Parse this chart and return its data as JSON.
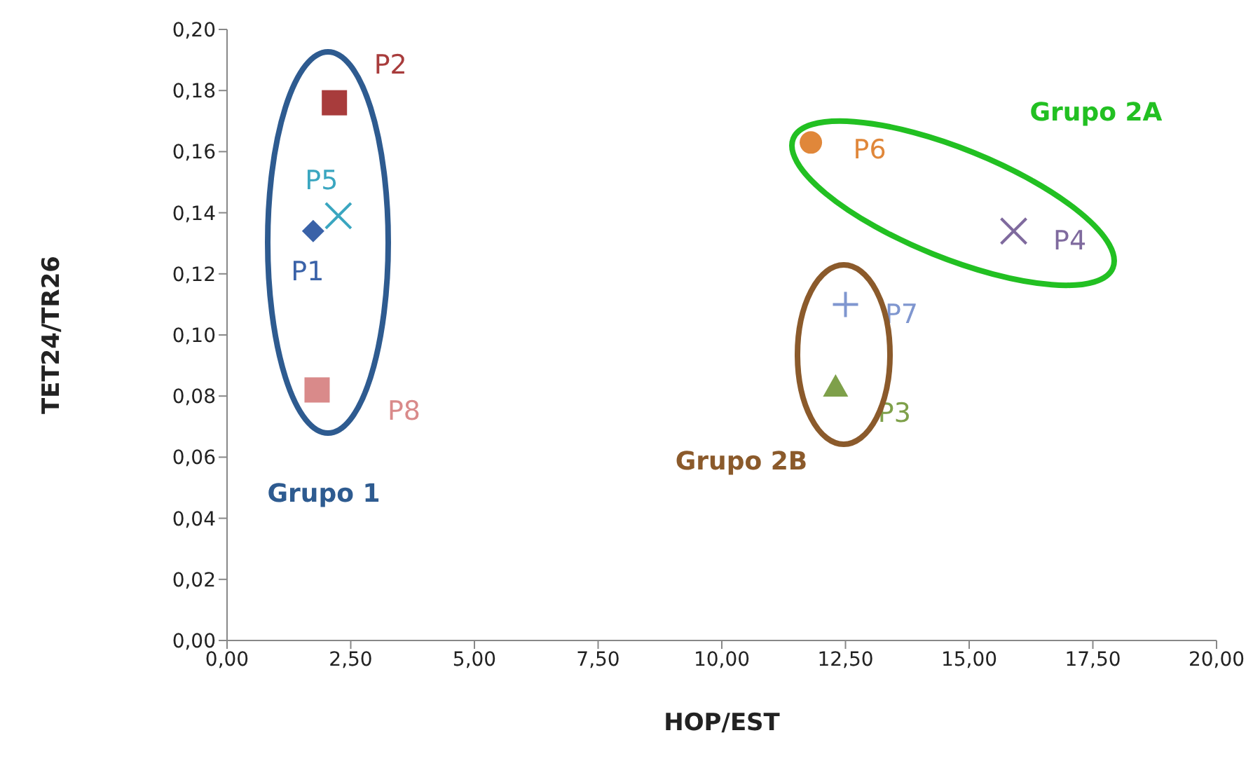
{
  "chart_data": {
    "type": "scatter",
    "xlabel": "HOP/EST",
    "ylabel": "TET24/TR26",
    "xlim": [
      0,
      20
    ],
    "ylim": [
      0,
      0.2
    ],
    "xticks": [
      {
        "value": 0,
        "label": "0,00"
      },
      {
        "value": 2.5,
        "label": "2,50"
      },
      {
        "value": 5,
        "label": "5,00"
      },
      {
        "value": 7.5,
        "label": "7,50"
      },
      {
        "value": 10,
        "label": "10,00"
      },
      {
        "value": 12.5,
        "label": "12,50"
      },
      {
        "value": 15,
        "label": "15,00"
      },
      {
        "value": 17.5,
        "label": "17,50"
      },
      {
        "value": 20,
        "label": "20,00"
      }
    ],
    "yticks": [
      {
        "value": 0,
        "label": "0,00"
      },
      {
        "value": 0.02,
        "label": "0,02"
      },
      {
        "value": 0.04,
        "label": "0,04"
      },
      {
        "value": 0.06,
        "label": "0,06"
      },
      {
        "value": 0.08,
        "label": "0,08"
      },
      {
        "value": 0.1,
        "label": "0,10"
      },
      {
        "value": 0.12,
        "label": "0,12"
      },
      {
        "value": 0.14,
        "label": "0,14"
      },
      {
        "value": 0.16,
        "label": "0,16"
      },
      {
        "value": 0.18,
        "label": "0,18"
      },
      {
        "value": 0.2,
        "label": "0,20"
      }
    ],
    "grid": false,
    "legend": false,
    "series": [
      {
        "name": "P1",
        "color": "#3a62a8",
        "marker": "diamond",
        "x": [
          1.74
        ],
        "values": [
          0.134
        ]
      },
      {
        "name": "P2",
        "color": "#a83c3c",
        "marker": "square",
        "x": [
          2.17
        ],
        "values": [
          0.176
        ]
      },
      {
        "name": "P3",
        "color": "#7ea04a",
        "marker": "triangle",
        "x": [
          12.3
        ],
        "values": [
          0.083
        ]
      },
      {
        "name": "P4",
        "color": "#7f6a9e",
        "marker": "cross",
        "x": [
          15.9
        ],
        "values": [
          0.134
        ]
      },
      {
        "name": "P5",
        "color": "#3aa6c0",
        "marker": "cross",
        "x": [
          2.25
        ],
        "values": [
          0.139
        ]
      },
      {
        "name": "P6",
        "color": "#e0873a",
        "marker": "circle",
        "x": [
          11.8
        ],
        "values": [
          0.163
        ]
      },
      {
        "name": "P7",
        "color": "#7f96cf",
        "marker": "plus",
        "x": [
          12.5
        ],
        "values": [
          0.11
        ]
      },
      {
        "name": "P8",
        "color": "#d98a8a",
        "marker": "square",
        "x": [
          1.82
        ],
        "values": [
          0.082
        ]
      }
    ],
    "annotations": [
      "Grupo 1",
      "Grupo 2A",
      "Grupo 2B"
    ]
  }
}
